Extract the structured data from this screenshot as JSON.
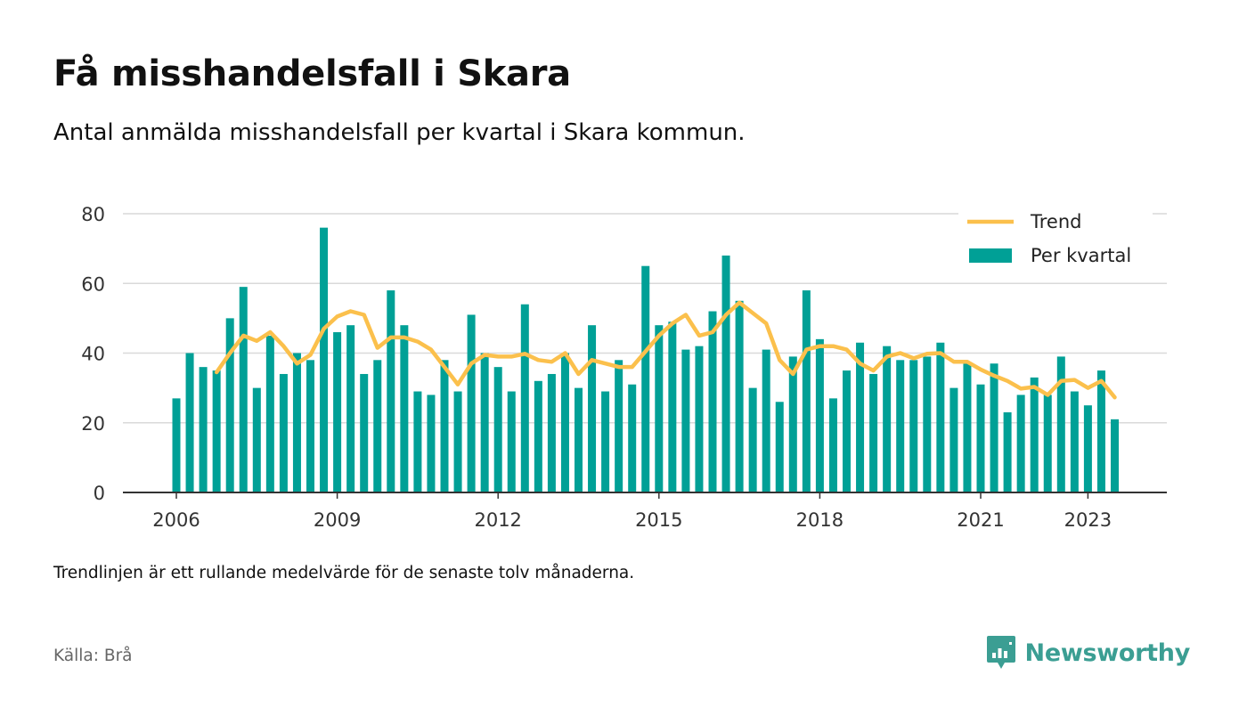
{
  "title": "Få misshandelsfall i Skara",
  "subtitle": "Antal anmälda misshandelsfall per kvartal i Skara kommun.",
  "note": "Trendlinjen är ett rullande medelvärde för de senaste tolv månaderna.",
  "source": "Källa: Brå",
  "brand": {
    "name": "Newsworthy",
    "icon": "newsworthy-logo-icon",
    "color": "#3b9e93"
  },
  "colors": {
    "bar": "#00a096",
    "trend": "#fbc04c",
    "grid": "#d9d9d9",
    "axis": "#333333"
  },
  "chart_data": {
    "type": "bar",
    "x_start": "2006 Q1",
    "x_ticks": [
      "2006",
      "2009",
      "2012",
      "2015",
      "2018",
      "2021",
      "2023"
    ],
    "y_ticks": [
      0,
      20,
      40,
      60,
      80
    ],
    "ylim": [
      0,
      80
    ],
    "grid": true,
    "legend_position": "top-right",
    "series": [
      {
        "name": "Per kvartal",
        "type": "bar",
        "values": [
          27,
          40,
          36,
          35,
          50,
          59,
          30,
          45,
          34,
          40,
          38,
          76,
          46,
          48,
          34,
          38,
          58,
          48,
          29,
          28,
          38,
          29,
          51,
          40,
          36,
          29,
          54,
          32,
          34,
          40,
          30,
          48,
          29,
          38,
          31,
          65,
          48,
          49,
          41,
          42,
          52,
          68,
          55,
          30,
          41,
          26,
          39,
          58,
          44,
          27,
          35,
          43,
          34,
          42,
          38,
          38,
          39,
          43,
          30,
          37,
          31,
          37,
          23,
          28,
          33,
          28,
          39,
          29,
          25,
          35,
          21
        ]
      },
      {
        "name": "Trend",
        "type": "line",
        "values": [
          null,
          null,
          null,
          34.5,
          40,
          45,
          43.5,
          46,
          42,
          37,
          39.5,
          47,
          50.5,
          52,
          51,
          41.5,
          44.5,
          44.5,
          43.3,
          41,
          36,
          31,
          37,
          39.5,
          39,
          39,
          39.8,
          38,
          37.5,
          40,
          34,
          38,
          37,
          36,
          36,
          40.5,
          45,
          48.5,
          51,
          45,
          46,
          51,
          54.5,
          51.5,
          48.5,
          38,
          34,
          41,
          42,
          42,
          41,
          37,
          35,
          39,
          40,
          38.5,
          39.8,
          40,
          37.5,
          37.5,
          35.3,
          33.5,
          32,
          29.8,
          30.3,
          28,
          32,
          32.3,
          30,
          32,
          27.3
        ]
      }
    ]
  }
}
